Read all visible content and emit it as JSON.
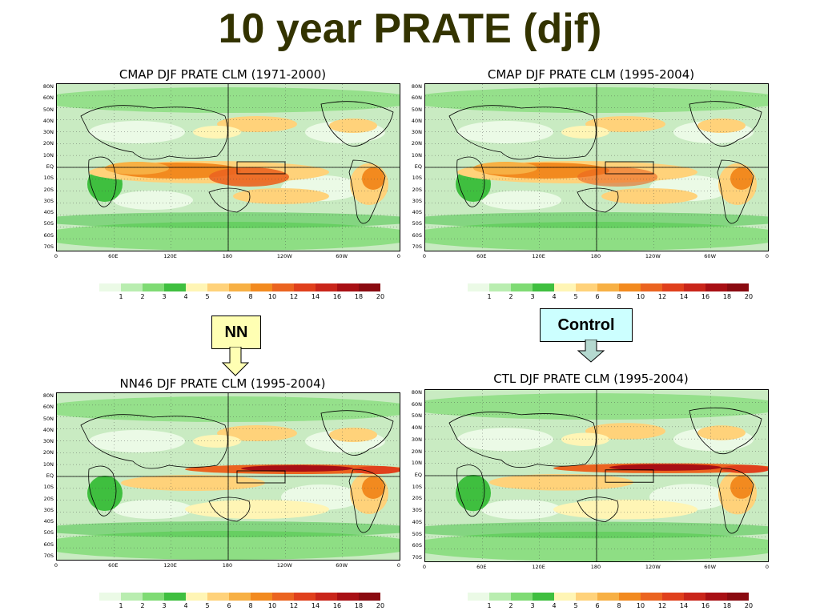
{
  "title": "10 year PRATE (djf)",
  "panels": [
    {
      "id": "p1",
      "title": "CMAP DJF PRATE CLM (1971-2000)",
      "pattern": "cmap1"
    },
    {
      "id": "p2",
      "title": "CMAP DJF PRATE CLM (1995-2004)",
      "pattern": "cmap2"
    },
    {
      "id": "p3",
      "title": "NN46 DJF PRATE CLM (1995-2004)",
      "pattern": "nn"
    },
    {
      "id": "p4",
      "title": "CTL DJF PRATE CLM (1995-2004)",
      "pattern": "ctl"
    }
  ],
  "latitude_labels": [
    "80N",
    "60N",
    "50N",
    "40N",
    "30N",
    "20N",
    "10N",
    "EQ",
    "10S",
    "20S",
    "30S",
    "40S",
    "50S",
    "60S",
    "70S"
  ],
  "longitude_labels": [
    "0",
    "60E",
    "120E",
    "180",
    "120W",
    "60W",
    "0"
  ],
  "colorbar": {
    "levels": [
      "1",
      "2",
      "3",
      "4",
      "5",
      "6",
      "8",
      "10",
      "12",
      "14",
      "16",
      "18",
      "20"
    ],
    "colors": [
      "#ebfae6",
      "#b9edb0",
      "#7fdb74",
      "#3fbf3f",
      "#fff5b5",
      "#ffd27a",
      "#f7b044",
      "#f28a1f",
      "#eb6420",
      "#e0401c",
      "#c9251a",
      "#a80f14",
      "#8a0a10"
    ]
  },
  "callouts": {
    "nn": {
      "label": "NN",
      "bg": "#ffffb3"
    },
    "control": {
      "label": "Control",
      "bg": "#ccffff"
    }
  },
  "colors": {
    "title": "#333300",
    "map_base": "#c9ebc2"
  }
}
